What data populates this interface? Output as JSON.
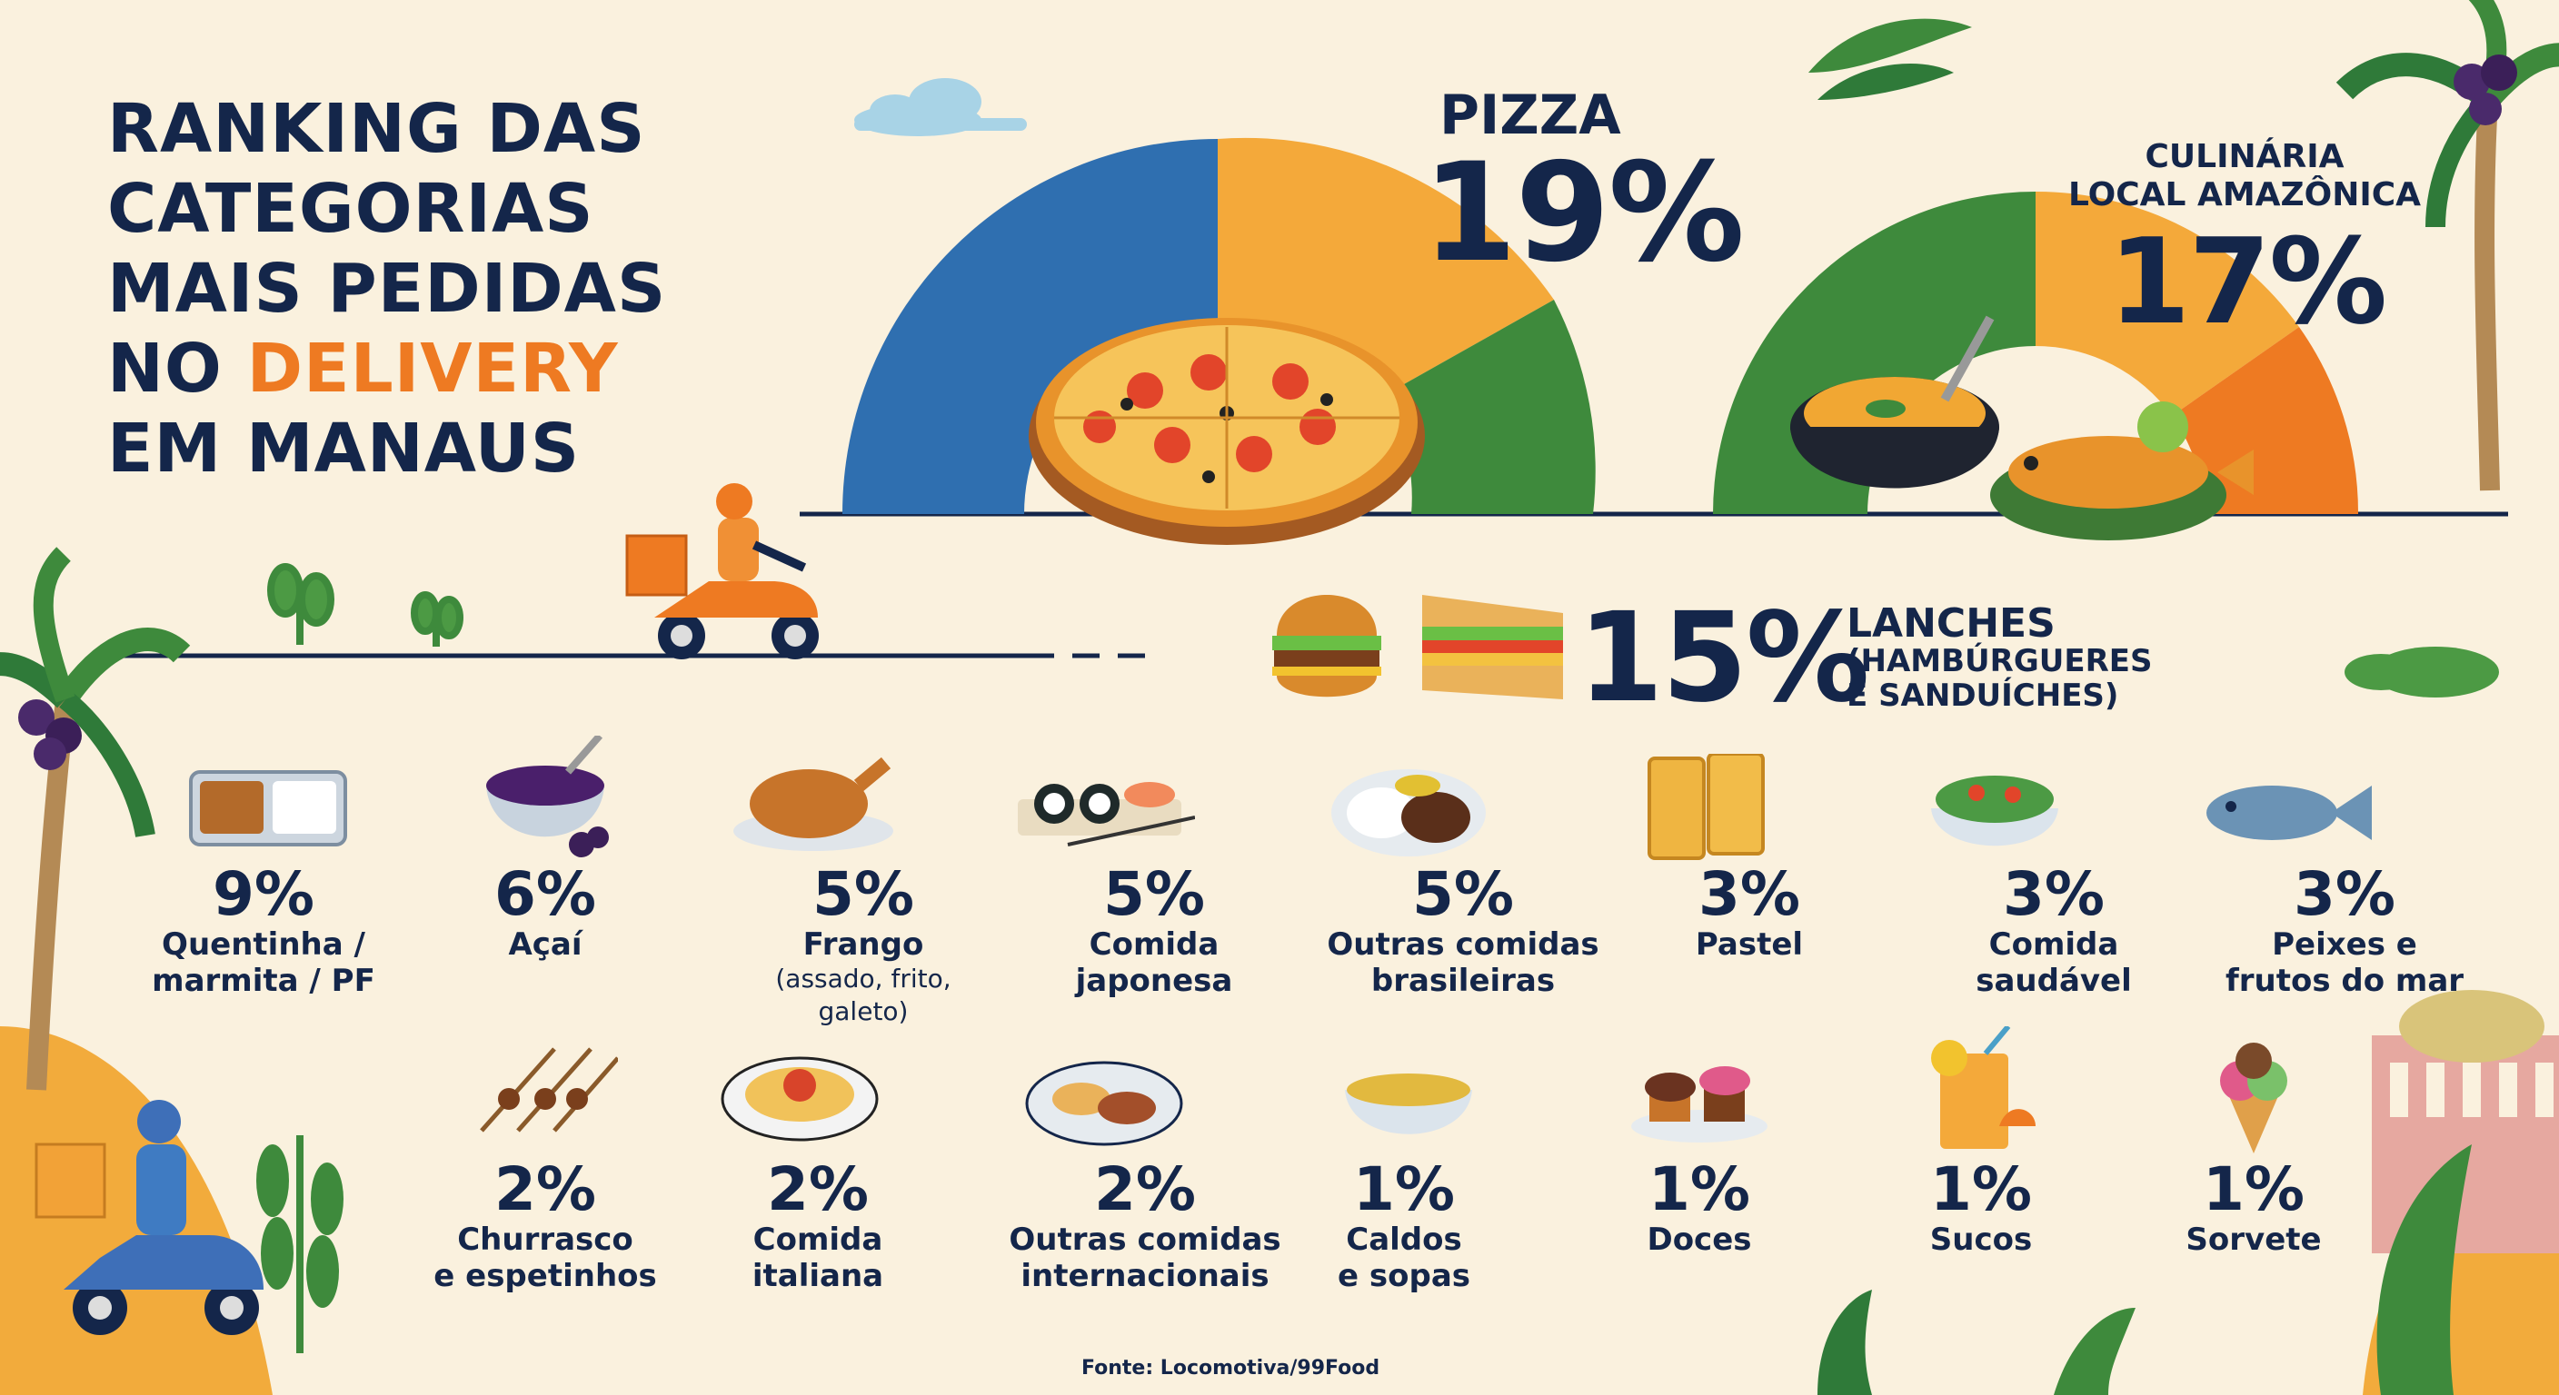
{
  "title": {
    "line1": "RANKING DAS",
    "line2": "CATEGORIAS",
    "line3": "MAIS PEDIDAS",
    "line4_prefix": "NO ",
    "line4_highlight": "DELIVERY",
    "line5": "EM MANAUS"
  },
  "source": "Fonte: Locomotiva/99Food",
  "colors": {
    "navy": "#14264a",
    "orange": "#ee7a22",
    "blue": "#2f6fb0",
    "yellow": "#f4a93a",
    "green": "#3e8a3c",
    "cream": "#faf1de"
  },
  "chart_data": {
    "type": "bar",
    "unit": "%",
    "categories": [
      "Pizza",
      "Culinária local amazônica",
      "Lanches (hambúrgueres e sanduíches)",
      "Quentinha / marmita / PF",
      "Açaí",
      "Frango (assado, frito, galeto)",
      "Comida japonesa",
      "Outras comidas brasileiras",
      "Pastel",
      "Comida saudável",
      "Peixes e frutos do mar",
      "Churrasco e espetinhos",
      "Comida italiana",
      "Outras comidas internacionais",
      "Caldos e sopas",
      "Doces",
      "Sucos",
      "Sorvete"
    ],
    "values": [
      19,
      17,
      15,
      9,
      6,
      5,
      5,
      5,
      3,
      3,
      3,
      2,
      2,
      2,
      1,
      1,
      1,
      1
    ]
  },
  "top": {
    "pizza": {
      "name": "PIZZA",
      "pct": "19%"
    },
    "amazon": {
      "name_line1": "CULINÁRIA",
      "name_line2": "LOCAL AMAZÔNICA",
      "pct": "17%"
    },
    "lanches": {
      "name_line1": "LANCHES",
      "name_line2": "(HAMBÚRGUERES",
      "name_line3": "E SANDUÍCHES)",
      "pct": "15%"
    }
  },
  "items": [
    {
      "pct": "9%",
      "label": "Quentinha /\nmarmita / PF",
      "note": "",
      "icon": "lunchbox-icon"
    },
    {
      "pct": "6%",
      "label": "Açaí",
      "note": "",
      "icon": "acai-bowl-icon"
    },
    {
      "pct": "5%",
      "label": "Frango",
      "note": "(assado, frito, galeto)",
      "icon": "roast-chicken-icon"
    },
    {
      "pct": "5%",
      "label": "Comida\njaponesa",
      "note": "",
      "icon": "sushi-icon"
    },
    {
      "pct": "5%",
      "label": "Outras comidas\nbrasileiras",
      "note": "",
      "icon": "rice-beans-plate-icon"
    },
    {
      "pct": "3%",
      "label": "Pastel",
      "note": "",
      "icon": "pastel-icon"
    },
    {
      "pct": "3%",
      "label": "Comida\nsaudável",
      "note": "",
      "icon": "salad-bowl-icon"
    },
    {
      "pct": "3%",
      "label": "Peixes e\nfrutos do mar",
      "note": "",
      "icon": "fish-icon"
    },
    {
      "pct": "2%",
      "label": "Churrasco\ne espetinhos",
      "note": "",
      "icon": "skewers-icon"
    },
    {
      "pct": "2%",
      "label": "Comida\nitaliana",
      "note": "",
      "icon": "spaghetti-icon"
    },
    {
      "pct": "2%",
      "label": "Outras comidas\ninternacionais",
      "note": "",
      "icon": "international-plate-icon"
    },
    {
      "pct": "1%",
      "label": "Caldos\ne sopas",
      "note": "",
      "icon": "soup-bowl-icon"
    },
    {
      "pct": "1%",
      "label": "Doces",
      "note": "",
      "icon": "cupcakes-icon"
    },
    {
      "pct": "1%",
      "label": "Sucos",
      "note": "",
      "icon": "juice-glass-icon"
    },
    {
      "pct": "1%",
      "label": "Sorvete",
      "note": "",
      "icon": "ice-cream-icon"
    }
  ]
}
